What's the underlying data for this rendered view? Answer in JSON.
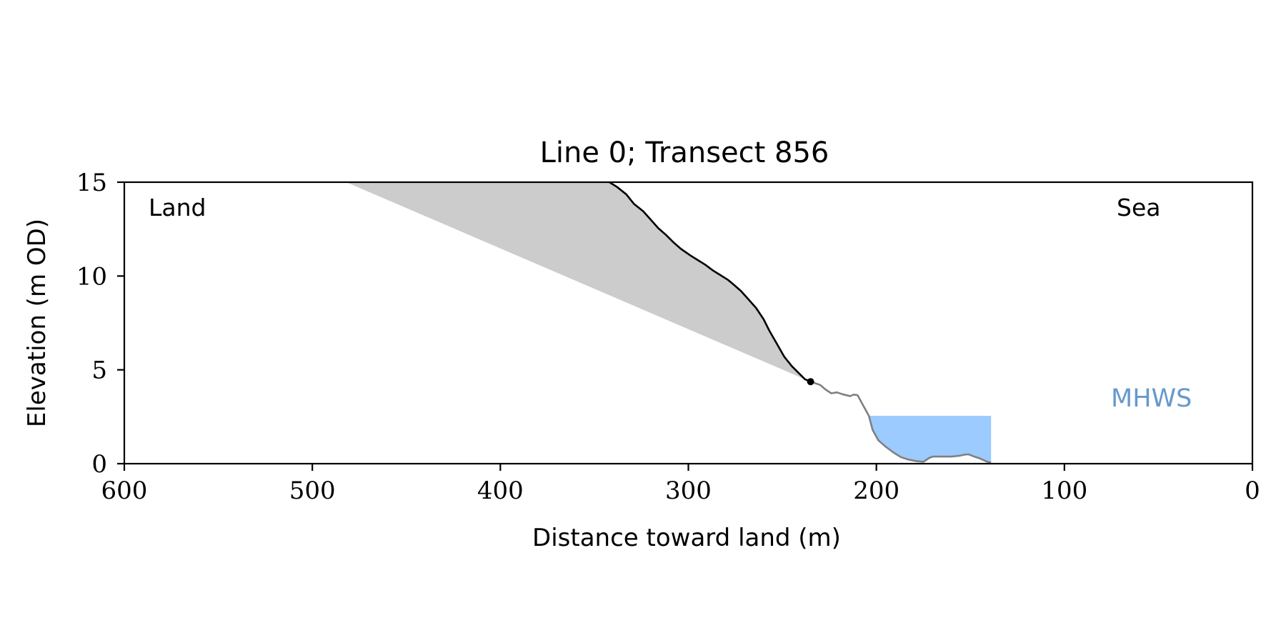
{
  "chart_data": {
    "type": "area",
    "title": "Line 0; Transect 856",
    "xlabel": "Distance toward land (m)",
    "ylabel": "Elevation (m OD)",
    "xlim": [
      600,
      0
    ],
    "ylim": [
      0,
      15
    ],
    "x_ticks": [
      600,
      500,
      400,
      300,
      200,
      100,
      0
    ],
    "y_ticks": [
      0,
      5,
      10,
      15
    ],
    "grid": false,
    "annotations": {
      "land": "Land",
      "sea": "Sea",
      "mhws": "MHWS"
    },
    "colors": {
      "cliff": "#000000",
      "foreshore": "#808080",
      "shaded_region": "#cccccc",
      "water": "#9ccbff",
      "mhws_label": "#6699cc",
      "axes": "#000000"
    },
    "cliff_profile": {
      "x": [
        342,
        338,
        333,
        329,
        324,
        320,
        316,
        312,
        308,
        304,
        299,
        295,
        291,
        287,
        283,
        279,
        276,
        272,
        268,
        264,
        260,
        257,
        253,
        249,
        245,
        241,
        238,
        235
      ],
      "y": [
        15.0,
        14.75,
        14.35,
        13.85,
        13.45,
        13.0,
        12.55,
        12.2,
        11.8,
        11.45,
        11.1,
        10.85,
        10.6,
        10.3,
        10.05,
        9.8,
        9.55,
        9.2,
        8.75,
        8.3,
        7.7,
        7.1,
        6.4,
        5.7,
        5.2,
        4.8,
        4.5,
        4.37
      ]
    },
    "foreshore_profile": {
      "x": [
        235,
        230,
        227,
        224,
        221,
        218,
        214,
        212,
        210,
        207,
        204,
        202,
        199,
        195,
        191,
        187,
        183,
        179,
        175,
        172,
        170,
        165,
        160,
        156,
        153,
        151,
        148,
        145,
        141,
        139
      ],
      "y": [
        4.37,
        4.2,
        3.95,
        3.75,
        3.8,
        3.7,
        3.6,
        3.68,
        3.65,
        3.1,
        2.55,
        1.8,
        1.25,
        0.9,
        0.6,
        0.35,
        0.22,
        0.14,
        0.1,
        0.3,
        0.38,
        0.38,
        0.38,
        0.42,
        0.48,
        0.5,
        0.38,
        0.28,
        0.1,
        0.05
      ]
    },
    "cliff_toe": {
      "x": 235,
      "y": 4.37
    },
    "shaded_region": {
      "x": [
        482,
        342,
        338,
        333,
        329,
        324,
        320,
        316,
        312,
        308,
        304,
        299,
        295,
        291,
        287,
        283,
        279,
        276,
        272,
        268,
        264,
        260,
        257,
        253,
        249,
        245,
        241,
        238,
        235
      ],
      "y": [
        15.0,
        15.0,
        14.75,
        14.35,
        13.85,
        13.45,
        13.0,
        12.55,
        12.2,
        11.8,
        11.45,
        11.1,
        10.85,
        10.6,
        10.3,
        10.05,
        9.8,
        9.55,
        9.2,
        8.75,
        8.3,
        7.7,
        7.1,
        6.4,
        5.7,
        5.2,
        4.8,
        4.5,
        4.37
      ]
    },
    "mhws_level": 2.55,
    "water_extent": {
      "x_start": 204,
      "x_end": 139
    }
  }
}
